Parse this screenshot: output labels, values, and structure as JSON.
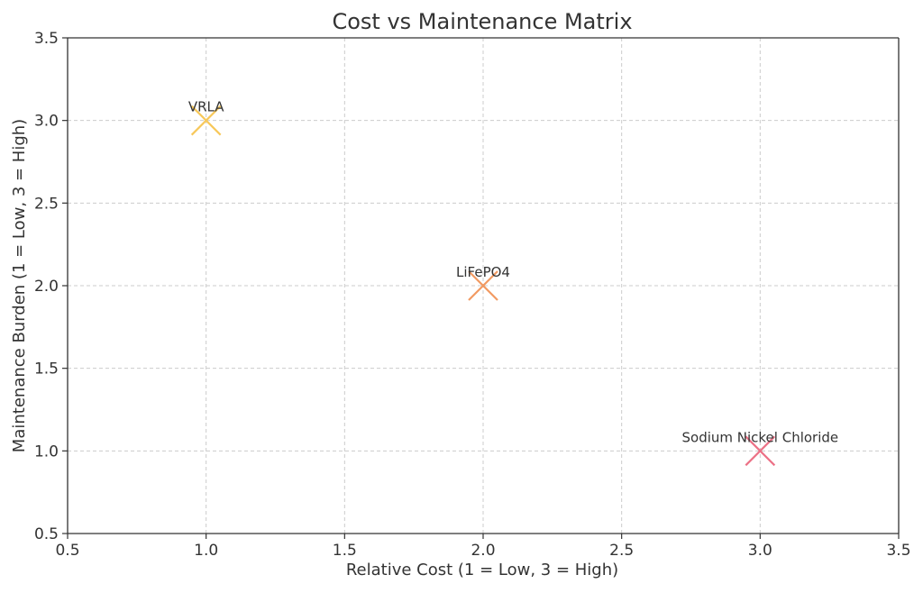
{
  "chart_data": {
    "type": "scatter",
    "title": "Cost vs Maintenance Matrix",
    "xlabel": "Relative Cost (1 = Low, 3 = High)",
    "ylabel": "Maintenance Burden (1 = Low, 3 = High)",
    "xlim": [
      0.5,
      3.5
    ],
    "ylim": [
      0.5,
      3.5
    ],
    "xticks": [
      "0.5",
      "1.0",
      "1.5",
      "2.0",
      "2.5",
      "3.0",
      "3.5"
    ],
    "yticks": [
      "0.5",
      "1.0",
      "1.5",
      "2.0",
      "2.5",
      "3.0",
      "3.5"
    ],
    "grid": true,
    "marker": "x",
    "points": [
      {
        "label": "VRLA",
        "x": 1,
        "y": 3,
        "color": "#f7c85a"
      },
      {
        "label": "LiFePO4",
        "x": 2,
        "y": 2,
        "color": "#f29a62"
      },
      {
        "label": "Sodium Nickel Chloride",
        "x": 3,
        "y": 1,
        "color": "#ec7186"
      }
    ]
  }
}
